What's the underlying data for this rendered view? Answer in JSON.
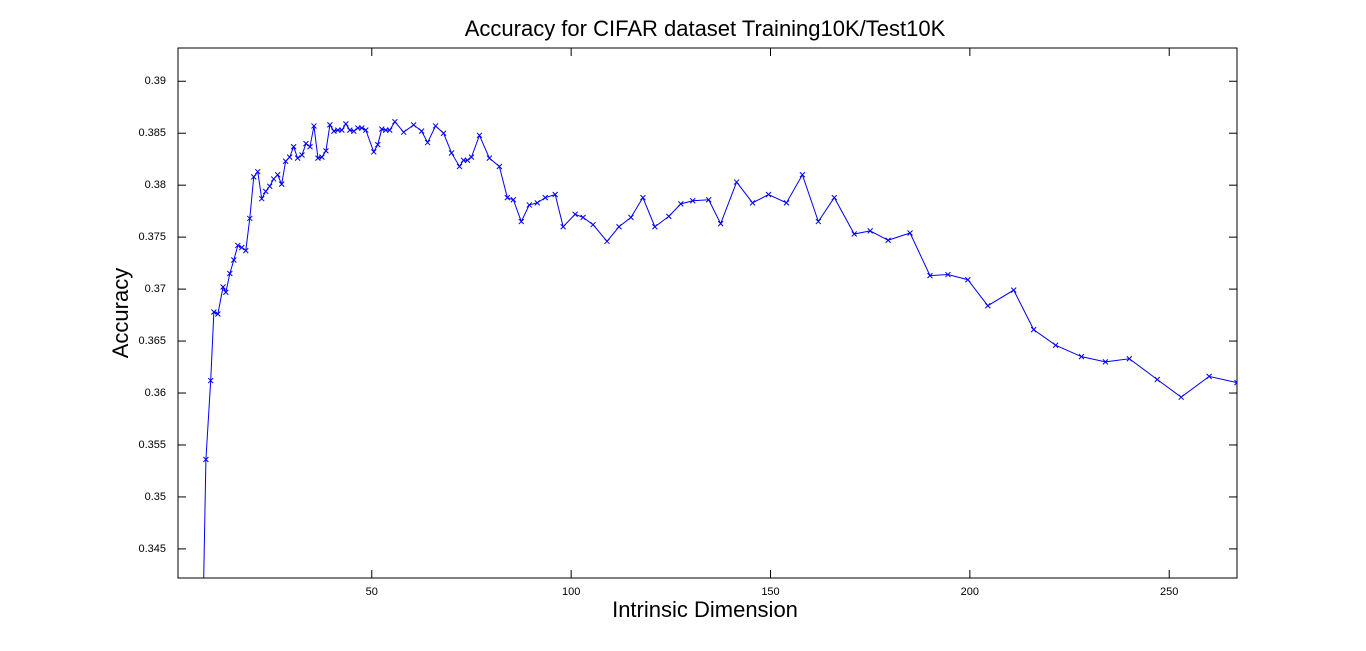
{
  "chart_data": {
    "type": "line",
    "title": "Accuracy for CIFAR dataset Training10K/Test10K",
    "xlabel": "Intrinsic Dimension",
    "ylabel": "Accuracy",
    "color": "#0000ff",
    "marker": "x",
    "x": [
      7.5,
      8.4,
      9.6,
      10.4,
      11.4,
      12.7,
      13.4,
      14.4,
      15.4,
      16.4,
      17.4,
      18.4,
      19.4,
      20.4,
      21.4,
      22.4,
      23.4,
      24.4,
      25.4,
      26.4,
      27.4,
      28.4,
      29.4,
      30.4,
      31.4,
      32.5,
      33.5,
      34.5,
      35.5,
      36.5,
      37.5,
      38.5,
      39.5,
      40.5,
      41.5,
      42.5,
      43.5,
      44.5,
      45.5,
      46.5,
      47.5,
      48.5,
      50.5,
      51.5,
      52.5,
      53.5,
      54.5,
      55.8,
      58,
      60.5,
      62.5,
      64,
      66,
      68,
      70,
      72,
      73,
      74,
      75,
      77,
      79.5,
      82,
      84,
      85.5,
      87.5,
      89.5,
      91.5,
      93.5,
      96,
      98,
      101,
      103,
      105.5,
      109,
      112,
      115,
      118,
      121,
      124.5,
      127.5,
      130.5,
      134.5,
      137.5,
      141.5,
      145.5,
      149.5,
      154,
      158,
      162,
      166,
      171,
      175,
      179.5,
      185,
      190,
      194.5,
      199.5,
      204.5,
      211,
      216,
      221.5,
      228,
      234,
      240,
      247,
      253,
      260,
      267
    ],
    "values": [
      0.335,
      0.3536,
      0.3612,
      0.3678,
      0.3676,
      0.3702,
      0.3697,
      0.3715,
      0.3728,
      0.3742,
      0.374,
      0.3737,
      0.3768,
      0.3808,
      0.3813,
      0.3787,
      0.3794,
      0.3799,
      0.3806,
      0.381,
      0.3801,
      0.3823,
      0.3827,
      0.3837,
      0.3826,
      0.3829,
      0.384,
      0.3837,
      0.3857,
      0.3826,
      0.3827,
      0.3833,
      0.3858,
      0.3852,
      0.3853,
      0.3853,
      0.3859,
      0.3853,
      0.3852,
      0.3855,
      0.3855,
      0.3853,
      0.3832,
      0.3839,
      0.3854,
      0.3853,
      0.3853,
      0.3861,
      0.3851,
      0.3858,
      0.3852,
      0.3841,
      0.3857,
      0.385,
      0.3831,
      0.3818,
      0.3824,
      0.3824,
      0.3827,
      0.3848,
      0.3826,
      0.3818,
      0.3788,
      0.3786,
      0.3765,
      0.3781,
      0.3783,
      0.3788,
      0.3791,
      0.376,
      0.3772,
      0.3769,
      0.3762,
      0.3746,
      0.376,
      0.3769,
      0.3788,
      0.376,
      0.377,
      0.3782,
      0.3785,
      0.3786,
      0.3763,
      0.3803,
      0.3783,
      0.3791,
      0.3783,
      0.381,
      0.3765,
      0.3788,
      0.3753,
      0.3756,
      0.3747,
      0.3754,
      0.3713,
      0.3714,
      0.3709,
      0.3684,
      0.3699,
      0.3661,
      0.3646,
      0.3635,
      0.363,
      0.3633,
      0.3613,
      0.3596,
      0.3616,
      0.361
    ],
    "xlim": [
      1.4,
      267
    ],
    "ylim": [
      0.3422,
      0.3932
    ],
    "xticks": [
      50,
      100,
      150,
      200,
      250
    ],
    "yticks": [
      0.345,
      0.35,
      0.355,
      0.36,
      0.365,
      0.37,
      0.375,
      0.38,
      0.385,
      0.39
    ]
  }
}
